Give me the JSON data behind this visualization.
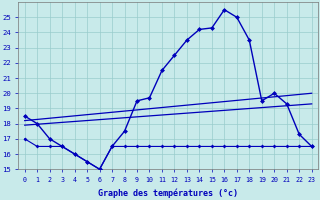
{
  "bg_color": "#c8eaea",
  "grid_color": "#99cccc",
  "line_color": "#0000bb",
  "xlabel": "Graphe des températures (°c)",
  "ylim": [
    15,
    26
  ],
  "xlim": [
    -0.5,
    23.5
  ],
  "yticks": [
    15,
    16,
    17,
    18,
    19,
    20,
    21,
    22,
    23,
    24,
    25
  ],
  "xticks": [
    0,
    1,
    2,
    3,
    4,
    5,
    6,
    7,
    8,
    9,
    10,
    11,
    12,
    13,
    14,
    15,
    16,
    17,
    18,
    19,
    20,
    21,
    22,
    23
  ],
  "temp_main": [
    18.5,
    18.0,
    17.0,
    16.5,
    16.0,
    15.5,
    15.0,
    16.5,
    17.5,
    19.5,
    19.7,
    21.5,
    22.5,
    23.5,
    24.2,
    24.3,
    25.5,
    25.0,
    23.5,
    19.5,
    20.0,
    19.3,
    17.3,
    16.5
  ],
  "temp_low": [
    17.0,
    null,
    null,
    17.0,
    null,
    null,
    null,
    16.5,
    null,
    null,
    null,
    null,
    null,
    null,
    null,
    null,
    null,
    null,
    null,
    null,
    null,
    null,
    null,
    16.5
  ],
  "flat_line": [
    17.0,
    16.5,
    16.5,
    16.5,
    16.0,
    15.5,
    15.0,
    16.5,
    16.5,
    16.5,
    16.5,
    16.5,
    16.5,
    16.5,
    16.5,
    16.5,
    16.5,
    16.5,
    16.5,
    16.5,
    16.5,
    16.5,
    16.5,
    16.5
  ],
  "trend1_x": [
    0,
    23
  ],
  "trend1_y": [
    17.9,
    19.3
  ],
  "trend2_x": [
    0,
    23
  ],
  "trend2_y": [
    18.2,
    20.0
  ]
}
